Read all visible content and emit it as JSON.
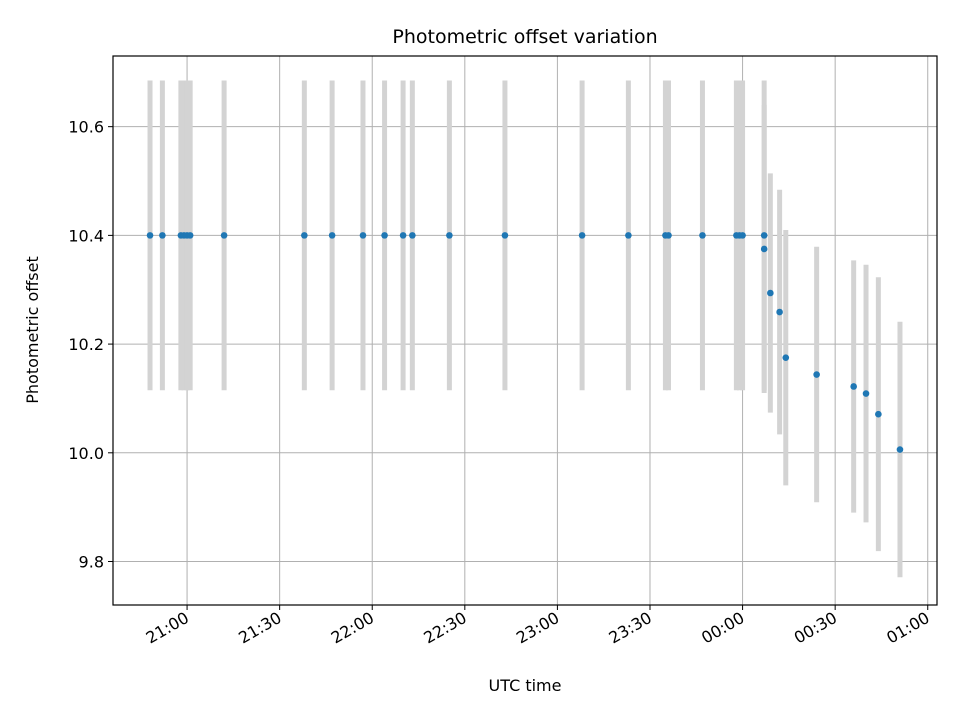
{
  "chart_data": {
    "type": "scatter",
    "title": "Photometric offset variation",
    "xlabel": "UTC time",
    "ylabel": "Photometric offset",
    "x_tick_labels": [
      "21:00",
      "21:30",
      "22:00",
      "22:30",
      "23:00",
      "23:30",
      "00:00",
      "00:30",
      "01:00"
    ],
    "y_tick_labels": [
      "9.8",
      "10.0",
      "10.2",
      "10.4",
      "10.6"
    ],
    "y_ticks": [
      9.8,
      10.0,
      10.2,
      10.4,
      10.6
    ],
    "xlim": [
      "20:36",
      "01:03"
    ],
    "ylim": [
      9.72,
      10.73
    ],
    "grid": true,
    "colors": {
      "marker": "#1f77b4",
      "errorbar": "#d3d3d3",
      "grid": "#b0b0b0"
    },
    "points": [
      {
        "x": "20:48",
        "y": 10.4,
        "err": 0.285
      },
      {
        "x": "20:52",
        "y": 10.4,
        "err": 0.285
      },
      {
        "x": "20:58",
        "y": 10.4,
        "err": 0.285
      },
      {
        "x": "20:59",
        "y": 10.4,
        "err": 0.285
      },
      {
        "x": "21:00",
        "y": 10.4,
        "err": 0.285
      },
      {
        "x": "21:01",
        "y": 10.4,
        "err": 0.285
      },
      {
        "x": "21:12",
        "y": 10.4,
        "err": 0.285
      },
      {
        "x": "21:38",
        "y": 10.4,
        "err": 0.285
      },
      {
        "x": "21:47",
        "y": 10.4,
        "err": 0.285
      },
      {
        "x": "21:57",
        "y": 10.4,
        "err": 0.285
      },
      {
        "x": "22:04",
        "y": 10.4,
        "err": 0.285
      },
      {
        "x": "22:10",
        "y": 10.4,
        "err": 0.285
      },
      {
        "x": "22:13",
        "y": 10.4,
        "err": 0.285
      },
      {
        "x": "22:25",
        "y": 10.4,
        "err": 0.285
      },
      {
        "x": "22:43",
        "y": 10.4,
        "err": 0.285
      },
      {
        "x": "23:08",
        "y": 10.4,
        "err": 0.285
      },
      {
        "x": "23:23",
        "y": 10.4,
        "err": 0.285
      },
      {
        "x": "23:35",
        "y": 10.4,
        "err": 0.285
      },
      {
        "x": "23:36",
        "y": 10.4,
        "err": 0.285
      },
      {
        "x": "23:47",
        "y": 10.4,
        "err": 0.285
      },
      {
        "x": "23:58",
        "y": 10.4,
        "err": 0.285
      },
      {
        "x": "23:59",
        "y": 10.4,
        "err": 0.285
      },
      {
        "x": "00:00",
        "y": 10.4,
        "err": 0.285
      },
      {
        "x": "00:07",
        "y": 10.4,
        "err": 0.285
      },
      {
        "x": "00:07",
        "y": 10.375,
        "err": 0.265
      },
      {
        "x": "00:09",
        "y": 10.294,
        "err": 0.22
      },
      {
        "x": "00:12",
        "y": 10.259,
        "err": 0.225
      },
      {
        "x": "00:14",
        "y": 10.175,
        "err": 0.235
      },
      {
        "x": "00:24",
        "y": 10.144,
        "err": 0.235
      },
      {
        "x": "00:36",
        "y": 10.122,
        "err": 0.232
      },
      {
        "x": "00:40",
        "y": 10.109,
        "err": 0.237
      },
      {
        "x": "00:44",
        "y": 10.071,
        "err": 0.252
      },
      {
        "x": "00:51",
        "y": 10.006,
        "err": 0.235
      }
    ]
  }
}
